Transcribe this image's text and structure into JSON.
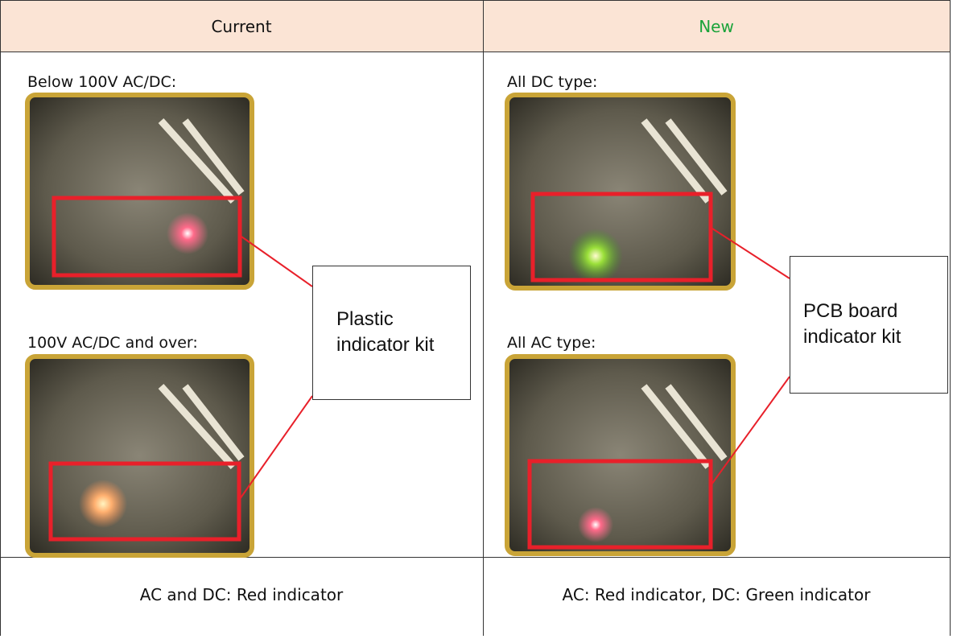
{
  "table": {
    "header": [
      "Current",
      "New"
    ],
    "body": {
      "current": {
        "captions": [
          "Below 100V AC/DC:",
          "100V AC/DC and over:"
        ],
        "callout": [
          "Plastic",
          "indicator kit"
        ]
      },
      "new": {
        "captions": [
          "All DC type:",
          "All AC type:"
        ],
        "callout": [
          "PCB board",
          "indicator kit"
        ]
      }
    },
    "footer": [
      "AC and DC: Red indicator",
      "AC: Red indicator, DC: Green indicator"
    ]
  }
}
